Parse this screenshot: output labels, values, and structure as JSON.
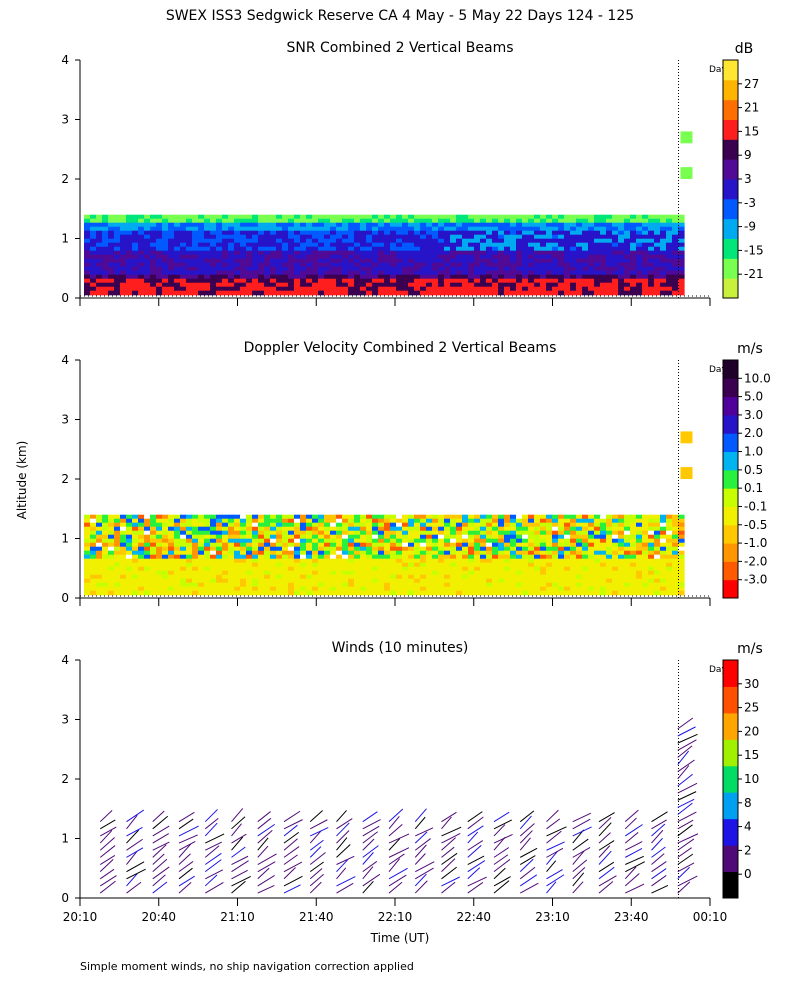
{
  "header": {
    "title": "SWEX ISS3 Sedgwick Reserve CA   4 May -  5 May 22 Days 124 - 125"
  },
  "shared": {
    "ylabel": "Altitude (km)",
    "xlabel": "Time (UT)",
    "yticks": [
      "0",
      "1",
      "2",
      "3",
      "4"
    ],
    "xticks": [
      "20:10",
      "20:40",
      "21:10",
      "21:40",
      "22:10",
      "22:40",
      "23:10",
      "23:40",
      "00:10"
    ],
    "day_marker_label": "Day",
    "footnote": "Simple moment winds, no ship navigation correction applied"
  },
  "chart_data": [
    {
      "type": "heatmap",
      "title": "SNR Combined 2 Vertical Beams",
      "xlabel": "",
      "ylabel": "Altitude (km)",
      "x_range": [
        "20:10",
        "00:10"
      ],
      "ylim": [
        0,
        4
      ],
      "units": "dB",
      "colorbar_ticks": [
        "27",
        "21",
        "15",
        "9",
        "3",
        "-3",
        "-9",
        "-15",
        "-21"
      ],
      "colorbar_colors": [
        "#c8f03c",
        "#78ff50",
        "#00e678",
        "#00aaf0",
        "#005aff",
        "#2814c8",
        "#500a96",
        "#3c0050",
        "#ff1e1e",
        "#ff6e00",
        "#ffb400",
        "#ffe632"
      ],
      "field_top_km": 1.4,
      "day_marker_time": "23:58",
      "grid": false
    },
    {
      "type": "heatmap",
      "title": "Doppler Velocity Combined 2 Vertical Beams",
      "xlabel": "",
      "ylabel": "Altitude (km)",
      "x_range": [
        "20:10",
        "00:10"
      ],
      "ylim": [
        0,
        4
      ],
      "units": "m/s",
      "colorbar_ticks": [
        "10.0",
        "5.0",
        "3.0",
        "2.0",
        "1.0",
        "0.5",
        "0.1",
        "-0.1",
        "-0.5",
        "-1.0",
        "-2.0",
        "-3.0"
      ],
      "colorbar_colors": [
        "#ff0000",
        "#ff5a00",
        "#ff9600",
        "#ffc800",
        "#f0f000",
        "#c8ff00",
        "#28f03c",
        "#00b4f0",
        "#005aff",
        "#2814c8",
        "#50009b",
        "#3c0050",
        "#1e0028"
      ],
      "field_top_km": 1.4,
      "day_marker_time": "23:58",
      "grid": false
    },
    {
      "type": "scatter",
      "title": "Winds (10 minutes)",
      "xlabel": "Time (UT)",
      "ylabel": "Altitude (km)",
      "x_range": [
        "20:10",
        "00:10"
      ],
      "ylim": [
        0,
        4
      ],
      "units": "m/s",
      "colorbar_ticks": [
        "30",
        "25",
        "20",
        "15",
        "10",
        "8",
        "4",
        "2",
        "0"
      ],
      "colorbar_colors": [
        "#000000",
        "#500a78",
        "#1e14e6",
        "#00a0f0",
        "#00dc64",
        "#a0f000",
        "#ffa500",
        "#ff5000",
        "#ff0000"
      ],
      "barb_times": [
        "20:20",
        "20:30",
        "20:40",
        "20:50",
        "21:00",
        "21:10",
        "21:20",
        "21:30",
        "21:40",
        "21:50",
        "22:00",
        "22:10",
        "22:20",
        "22:30",
        "22:40",
        "22:50",
        "23:00",
        "23:10",
        "23:20",
        "23:30",
        "23:40",
        "23:50",
        "00:00"
      ],
      "day_marker_time": "23:58",
      "grid": false
    }
  ]
}
